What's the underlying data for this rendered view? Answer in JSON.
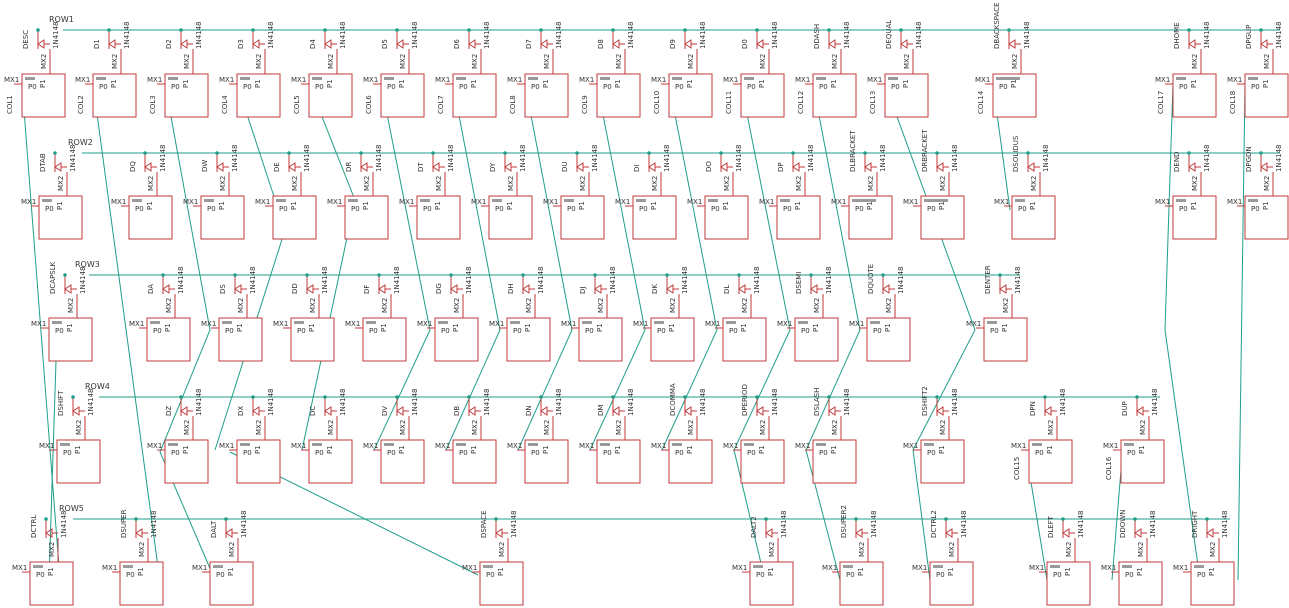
{
  "schematic": {
    "rows": [
      "ROW1",
      "ROW2",
      "ROW3",
      "ROW4",
      "ROW5"
    ],
    "switch_pin_labels": {
      "mx1": "MX1",
      "mx2": "MX2",
      "p0": "P0",
      "p1": "P1"
    },
    "diode_part": "1N4148",
    "keys": [
      {
        "label": "DESC",
        "col": "COL1",
        "row": 1
      },
      {
        "label": "D1",
        "col": "COL2",
        "row": 1
      },
      {
        "label": "D2",
        "col": "COL3",
        "row": 1
      },
      {
        "label": "D3",
        "col": "COL4",
        "row": 1
      },
      {
        "label": "D4",
        "col": "COL5",
        "row": 1
      },
      {
        "label": "D5",
        "col": "COL6",
        "row": 1
      },
      {
        "label": "D6",
        "col": "COL7",
        "row": 1
      },
      {
        "label": "D7",
        "col": "COL8",
        "row": 1
      },
      {
        "label": "D8",
        "col": "COL9",
        "row": 1
      },
      {
        "label": "D9",
        "col": "COL10",
        "row": 1
      },
      {
        "label": "D0",
        "col": "COL11",
        "row": 1
      },
      {
        "label": "DDASH",
        "col": "COL12",
        "row": 1
      },
      {
        "label": "DEQUAL",
        "col": "COL13",
        "row": 1
      },
      {
        "label": "DBACKSPACE",
        "col": "COL14",
        "row": 1
      },
      {
        "label": "DHOME",
        "col": "COL17",
        "row": 1
      },
      {
        "label": "DPGUP",
        "col": "COL18",
        "row": 1
      },
      {
        "label": "DTAB",
        "row": 2
      },
      {
        "label": "DQ",
        "row": 2
      },
      {
        "label": "DW",
        "row": 2
      },
      {
        "label": "DE",
        "row": 2
      },
      {
        "label": "DR",
        "row": 2
      },
      {
        "label": "DT",
        "row": 2
      },
      {
        "label": "DY",
        "row": 2
      },
      {
        "label": "DU",
        "row": 2
      },
      {
        "label": "DI",
        "row": 2
      },
      {
        "label": "DO",
        "row": 2
      },
      {
        "label": "DP",
        "row": 2
      },
      {
        "label": "DLBRACKET",
        "row": 2
      },
      {
        "label": "DRBRACKET",
        "row": 2
      },
      {
        "label": "DSOLIDUS",
        "row": 2
      },
      {
        "label": "DEND",
        "row": 2
      },
      {
        "label": "DPGDN",
        "row": 2
      },
      {
        "label": "DCAPSLK",
        "row": 3
      },
      {
        "label": "DA",
        "row": 3
      },
      {
        "label": "DS",
        "row": 3
      },
      {
        "label": "DD",
        "row": 3
      },
      {
        "label": "DF",
        "row": 3
      },
      {
        "label": "DG",
        "row": 3
      },
      {
        "label": "DH",
        "row": 3
      },
      {
        "label": "DJ",
        "row": 3
      },
      {
        "label": "DK",
        "row": 3
      },
      {
        "label": "DL",
        "row": 3
      },
      {
        "label": "DSEMI",
        "row": 3
      },
      {
        "label": "DQUOTE",
        "row": 3
      },
      {
        "label": "DENTER",
        "row": 3
      },
      {
        "label": "DSHIFT",
        "row": 4
      },
      {
        "label": "DZ",
        "row": 4
      },
      {
        "label": "DX",
        "row": 4
      },
      {
        "label": "DC",
        "row": 4
      },
      {
        "label": "DV",
        "row": 4
      },
      {
        "label": "DB",
        "row": 4
      },
      {
        "label": "DN",
        "row": 4
      },
      {
        "label": "DM",
        "row": 4
      },
      {
        "label": "DCOMMA",
        "row": 4
      },
      {
        "label": "DPERIOD",
        "row": 4
      },
      {
        "label": "DSLASH",
        "row": 4
      },
      {
        "label": "DSHIFT2",
        "row": 4
      },
      {
        "label": "DPN",
        "col": "COL15",
        "row": 4
      },
      {
        "label": "DUP",
        "col": "COL16",
        "row": 4
      },
      {
        "label": "DCTRL",
        "row": 5
      },
      {
        "label": "DSUPER",
        "row": 5
      },
      {
        "label": "DALT",
        "row": 5
      },
      {
        "label": "DSPACE",
        "row": 5
      },
      {
        "label": "DALT2",
        "row": 5
      },
      {
        "label": "DSUPER2",
        "row": 5
      },
      {
        "label": "DCTRL2",
        "row": 5
      },
      {
        "label": "DLEFT",
        "row": 5
      },
      {
        "label": "DDOWN",
        "row": 5
      },
      {
        "label": "DRIGHT",
        "row": 5
      }
    ],
    "colors": {
      "wire": "#1f9e8a",
      "symbol": "#c03a3a",
      "text": "#333333"
    }
  }
}
